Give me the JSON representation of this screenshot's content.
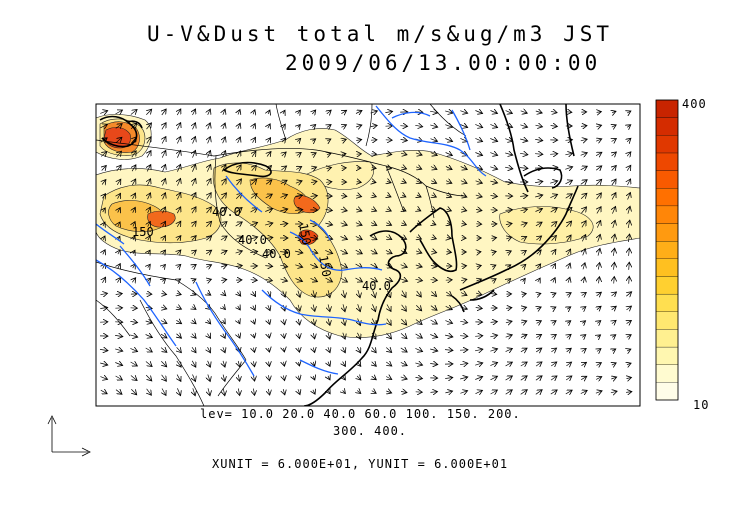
{
  "title": {
    "line1": "U-V&Dust total m/s&ug/m3 JST",
    "line2": "2009/06/13.00:00:00"
  },
  "contour_legend": {
    "line1": "lev= 10.0 20.0 40.0 60.0 100. 150. 200.",
    "line2": "300. 400."
  },
  "units_text": "XUNIT = 6.000E+01, YUNIT = 6.000E+01",
  "colorbar": {
    "max_label": "400",
    "min_label": "10",
    "levels": [
      10,
      20,
      40,
      60,
      100,
      150,
      200,
      300,
      400
    ],
    "colors": [
      "#fffde8",
      "#fffbd0",
      "#fff7b0",
      "#fff090",
      "#ffe870",
      "#ffdf50",
      "#ffd030",
      "#ffc020",
      "#ffae18",
      "#ff9a10",
      "#ff8608",
      "#ff7000",
      "#f85a00",
      "#ee4800",
      "#e03800",
      "#d42c00",
      "#c82400"
    ]
  },
  "contour_labels": [
    "40.0",
    "40.0",
    "150",
    "40.0",
    "150",
    "150",
    "40.0"
  ],
  "colors": {
    "coast": "#000000",
    "river": "#1e64ff",
    "dust_low": "#fff5b4",
    "dust_mid": "#fde07a",
    "dust_high": "#f46a1c"
  },
  "icons": [
    "wind-vector-arrow",
    "unit-reference-arrow"
  ]
}
